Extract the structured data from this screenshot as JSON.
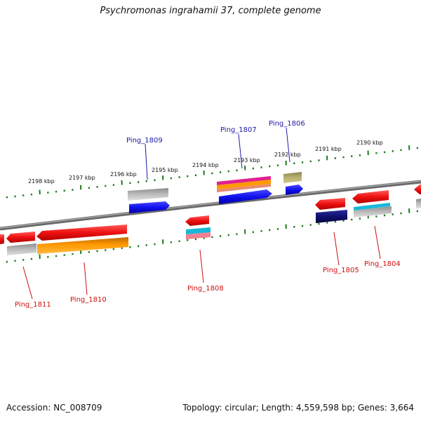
{
  "title": "Psychromonas ingrahamii 37, complete genome",
  "footer": {
    "accession": "Accession: NC_008709",
    "summary": "Topology: circular; Length: 4,559,598 bp; Genes: 3,664"
  },
  "ticks": [
    "2198 kbp",
    "2197 kbp",
    "2196 kbp",
    "2195 kbp",
    "2194 kbp",
    "2193 kbp",
    "2192 kbp",
    "2191 kbp",
    "2190 kbp"
  ],
  "genes_top": [
    "Ping_1809",
    "Ping_1807",
    "Ping_1806"
  ],
  "genes_bottom": [
    "Ping_1811",
    "Ping_1810",
    "Ping_1808",
    "Ping_1805",
    "Ping_1804"
  ],
  "colors": {
    "backbone": "#888888",
    "tick": "#1a7a1a",
    "red": "#ee1111",
    "blue": "#1111ee",
    "gray": "#aaaaaa",
    "orange": "#ff9900",
    "navy": "#101070",
    "olive": "#b8b070",
    "magenta": "#e0208f",
    "cyan": "#18b8d8",
    "pink": "#f08090",
    "top_label": "#1a1aa8",
    "bottom_label": "#cc1111"
  }
}
